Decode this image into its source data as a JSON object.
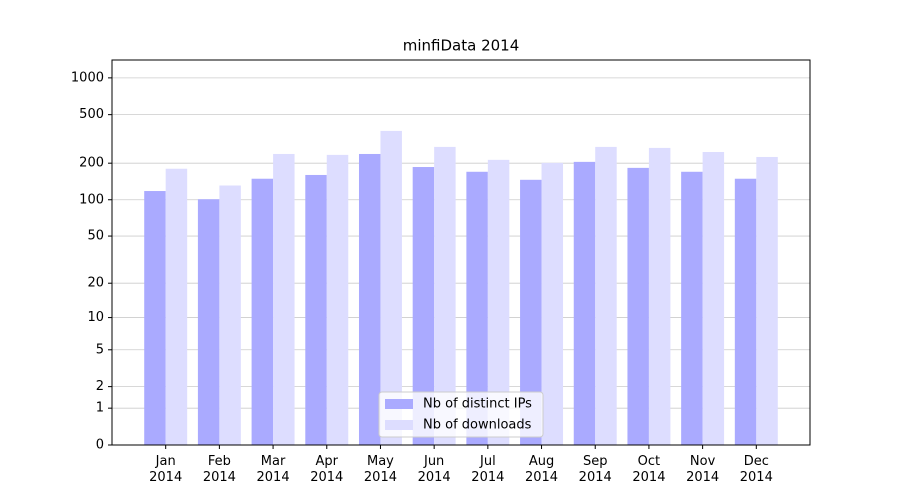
{
  "chart_data": {
    "type": "bar",
    "title": "minfiData 2014",
    "categories": [
      "Jan\n2014",
      "Feb\n2014",
      "Mar\n2014",
      "Apr\n2014",
      "May\n2014",
      "Jun\n2014",
      "Jul\n2014",
      "Aug\n2014",
      "Sep\n2014",
      "Oct\n2014",
      "Nov\n2014",
      "Dec\n2014"
    ],
    "series": [
      {
        "name": "Nb of distinct IPs",
        "color": "#aaaaff",
        "values": [
          118,
          101,
          149,
          160,
          238,
          186,
          170,
          146,
          205,
          183,
          170,
          149
        ]
      },
      {
        "name": "Nb of downloads",
        "color": "#ddddff",
        "values": [
          180,
          131,
          238,
          234,
          368,
          272,
          213,
          201,
          272,
          267,
          247,
          225
        ]
      }
    ],
    "yscale": "log1p",
    "ylim": [
      0,
      1400
    ],
    "yticks": [
      0,
      1,
      2,
      5,
      10,
      20,
      50,
      100,
      200,
      500,
      1000
    ],
    "grid": true,
    "legend": "lower center"
  }
}
